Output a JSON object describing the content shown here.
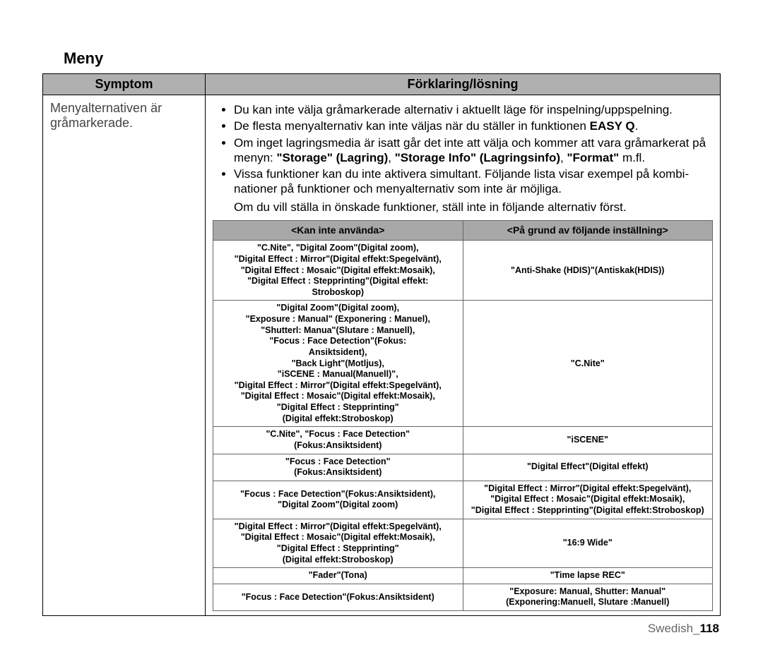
{
  "section_title": "Meny",
  "outer": {
    "col1_header": "Symptom",
    "col2_header": "Förklaring/lösning",
    "symptom_text": "Menyalternativen är gråmarkerade."
  },
  "bullets": {
    "b1": "Du kan inte välja gråmarkerade alternativ i aktuellt läge för inspelning/uppspelning.",
    "b2_a": "De flesta menyalternativ kan inte väljas när du ställer in funktionen ",
    "b2_b": "EASY Q",
    "b2_c": ".",
    "b3_a": "Om inget lagringsmedia är isatt går det inte att välja och kommer att vara gråmarkerat på menyn: ",
    "b3_b": "\"Storage\" (Lagring)",
    "b3_c": ", ",
    "b3_d": "\"Storage Info\" (Lagringsinfo)",
    "b3_e": ", ",
    "b3_f": "\"Format\"",
    "b3_g": " m.fl.",
    "b4": "Vissa funktioner kan du inte aktivera simultant. Följande lista visar exempel på kombi- nationer på funktioner och menyalternativ som inte är möjliga."
  },
  "post_text": "Om du vill ställa in önskade funktioner, ställ inte in följande alternativ först.",
  "inner": {
    "head_left": "<Kan inte använda>",
    "head_right": "<På grund av följande inställning>",
    "rows": [
      {
        "left": "\"C.Nite\", \"Digital Zoom\"(Digital zoom),\n\"Digital Effect : Mirror\"(Digital effekt:Spegelvänt),\n\"Digital Effect : Mosaic\"(Digital effekt:Mosaik),\n\"Digital Effect : Stepprinting\"(Digital effekt:\nStroboskop)",
        "right": "\"Anti-Shake (HDIS)\"(Antiskak(HDIS))"
      },
      {
        "left": "\"Digital Zoom\"(Digital zoom),\n\"Exposure : Manual\" (Exponering : Manuel),\n\"Shutterl: Manua\"(Slutare : Manuell),\n\"Focus : Face Detection\"(Fokus:\nAnsiktsident),\n\"Back Light\"(Motljus),\n\"iSCENE : Manual(Manuell)\",\n\"Digital Effect : Mirror\"(Digital effekt:Spegelvänt),\n\"Digital Effect : Mosaic\"(Digital effekt:Mosaik),\n\"Digital Effect : Stepprinting\"\n(Digital effekt:Stroboskop)",
        "right": "\"C.Nite\""
      },
      {
        "left": "\"C.Nite\", \"Focus : Face Detection\"\n(Fokus:Ansiktsident)",
        "right": "\"iSCENE\""
      },
      {
        "left": "\"Focus : Face Detection\"\n(Fokus:Ansiktsident)",
        "right": "\"Digital Effect\"(Digital effekt)"
      },
      {
        "left": "\"Focus : Face Detection\"(Fokus:Ansiktsident),\n\"Digital Zoom\"(Digital zoom)",
        "right": "\"Digital Effect : Mirror\"(Digital effekt:Spegelvänt),\n\"Digital Effect : Mosaic\"(Digital effekt:Mosaik),\n\"Digital Effect : Stepprinting\"(Digital effekt:Stroboskop)"
      },
      {
        "left": "\"Digital Effect : Mirror\"(Digital effekt:Spegelvänt),\n\"Digital Effect : Mosaic\"(Digital effekt:Mosaik),\n\"Digital Effect : Stepprinting\"\n(Digital effekt:Stroboskop)",
        "right": "\"16:9 Wide\""
      },
      {
        "left": "\"Fader\"(Tona)",
        "right": "\"Time lapse REC\""
      },
      {
        "left": "\"Focus : Face Detection\"(Fokus:Ansiktsident)",
        "right": "\"Exposure: Manual,  Shutter: Manual\"\n(Exponering:Manuell, Slutare :Manuell)"
      }
    ]
  },
  "footer": {
    "lang": "Swedish_",
    "page": "118"
  }
}
